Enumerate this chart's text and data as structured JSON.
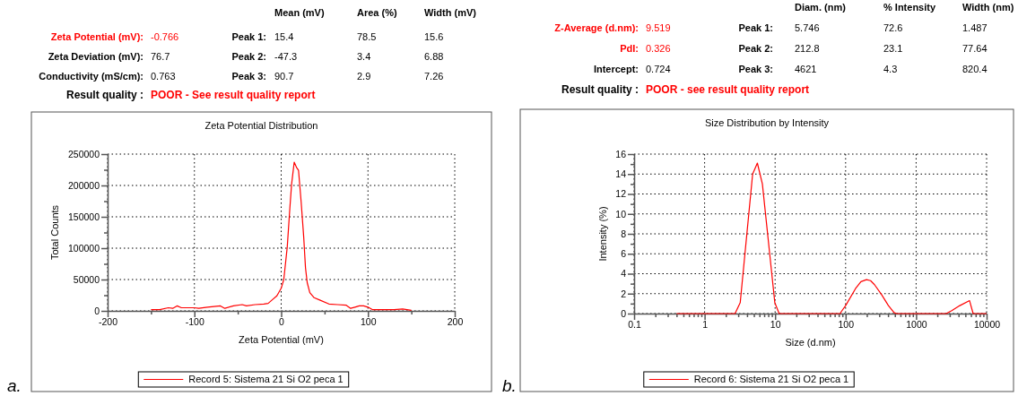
{
  "chart_data": [
    {
      "type": "other",
      "annotations": [
        "Mean (mV)",
        "Area (%)",
        "Width (mV)",
        "Zeta Potential (mV):",
        "-0.766",
        "Peak 1:",
        "15.4",
        "78.5",
        "15.6",
        "Zeta Deviation (mV):",
        "76.7",
        "Peak 2:",
        "-47.3",
        "3.4",
        "6.88",
        "Conductivity (mS/cm):",
        "0.763",
        "Peak 3:",
        "90.7",
        "2.9",
        "7.26",
        "Result quality :",
        "POOR - See result quality report"
      ]
    },
    {
      "type": "line",
      "title": "Zeta Potential Distribution",
      "xlabel": "Zeta Potential (mV)",
      "ylabel": "Total Counts",
      "annotations": [
        "a."
      ],
      "xlim": [
        -200,
        200
      ],
      "xticks": [
        -200,
        {
          "value": -150,
          "label": null
        },
        -100,
        {
          "value": -50,
          "label": null
        },
        0,
        {
          "value": 50,
          "label": null
        },
        100,
        {
          "value": 150,
          "label": null
        },
        200
      ],
      "ylim": [
        0,
        250000
      ],
      "yticks": [
        0,
        {
          "value": 25000,
          "label": null
        },
        50000,
        {
          "value": 75000,
          "label": null
        },
        100000,
        {
          "value": 125000,
          "label": null
        },
        150000,
        {
          "value": 175000,
          "label": null
        },
        200000,
        {
          "value": 225000,
          "label": null
        },
        250000
      ],
      "grid": true,
      "legend": "bottom",
      "series": [
        {
          "name": "Record 5: Sistema 21 Si O2 peca 1",
          "color": "#ff0000",
          "x": [
            -150,
            -140,
            -130,
            -125,
            -120,
            -115,
            -105,
            -100,
            -95,
            -85,
            -70,
            -65,
            -55,
            -45,
            -40,
            -30,
            -20,
            -15,
            -10,
            -5,
            0,
            3,
            7,
            10,
            12,
            15,
            18,
            20,
            23,
            26,
            28,
            30,
            33,
            38,
            45,
            55,
            65,
            75,
            80,
            85,
            90,
            95,
            100,
            105,
            120,
            130,
            140,
            150
          ],
          "values": [
            2000,
            2000,
            5000,
            4000,
            8000,
            5000,
            5000,
            5000,
            4000,
            6000,
            8000,
            4000,
            8000,
            10000,
            8000,
            10000,
            11000,
            12000,
            18000,
            24000,
            36000,
            50000,
            102000,
            164000,
            202000,
            237000,
            228000,
            224000,
            174000,
            117000,
            69000,
            45000,
            29000,
            21000,
            17000,
            11000,
            10000,
            9000,
            4000,
            6000,
            8000,
            8000,
            6000,
            2000,
            2000,
            2000,
            3000,
            1000
          ]
        }
      ]
    },
    {
      "type": "other",
      "annotations": [
        "Diam. (nm)",
        "% Intensity",
        "Width (nm)",
        "Z-Average (d.nm):",
        "9.519",
        "Peak 1:",
        "5.746",
        "72.6",
        "1.487",
        "PdI:",
        "0.326",
        "Peak 2:",
        "212.8",
        "23.1",
        "77.64",
        "Intercept:",
        "0.724",
        "Peak 3:",
        "4621",
        "4.3",
        "820.4",
        "Result quality :",
        "POOR - see result quality report"
      ]
    },
    {
      "type": "line",
      "title": "Size Distribution by Intensity",
      "xlabel": "Size (d.nm)",
      "ylabel": "Intensity (%)",
      "annotations": [
        "b."
      ],
      "log": "x",
      "xlim": [
        0.1,
        10000
      ],
      "xticks": [
        0.1,
        {
          "value": 0.2,
          "label": null
        },
        {
          "value": 0.3,
          "label": null
        },
        {
          "value": 0.4,
          "label": null
        },
        {
          "value": 0.5,
          "label": null
        },
        {
          "value": 0.6,
          "label": null
        },
        {
          "value": 0.7,
          "label": null
        },
        {
          "value": 0.8,
          "label": null
        },
        {
          "value": 0.9,
          "label": null
        },
        1,
        {
          "value": 2,
          "label": null
        },
        {
          "value": 3,
          "label": null
        },
        {
          "value": 4,
          "label": null
        },
        {
          "value": 5,
          "label": null
        },
        {
          "value": 6,
          "label": null
        },
        {
          "value": 7,
          "label": null
        },
        {
          "value": 8,
          "label": null
        },
        {
          "value": 9,
          "label": null
        },
        10,
        {
          "value": 20,
          "label": null
        },
        {
          "value": 30,
          "label": null
        },
        {
          "value": 40,
          "label": null
        },
        {
          "value": 50,
          "label": null
        },
        {
          "value": 60,
          "label": null
        },
        {
          "value": 70,
          "label": null
        },
        {
          "value": 80,
          "label": null
        },
        {
          "value": 90,
          "label": null
        },
        100,
        {
          "value": 200,
          "label": null
        },
        {
          "value": 300,
          "label": null
        },
        {
          "value": 400,
          "label": null
        },
        {
          "value": 500,
          "label": null
        },
        {
          "value": 600,
          "label": null
        },
        {
          "value": 700,
          "label": null
        },
        {
          "value": 800,
          "label": null
        },
        {
          "value": 900,
          "label": null
        },
        1000,
        {
          "value": 2000,
          "label": null
        },
        {
          "value": 3000,
          "label": null
        },
        {
          "value": 4000,
          "label": null
        },
        {
          "value": 5000,
          "label": null
        },
        {
          "value": 6000,
          "label": null
        },
        {
          "value": 7000,
          "label": null
        },
        {
          "value": 8000,
          "label": null
        },
        {
          "value": 9000,
          "label": null
        },
        10000
      ],
      "ylim": [
        0,
        16
      ],
      "yticks": [
        0,
        {
          "value": 1,
          "label": null
        },
        2,
        {
          "value": 3,
          "label": null
        },
        4,
        {
          "value": 5,
          "label": null
        },
        6,
        {
          "value": 7,
          "label": null
        },
        8,
        {
          "value": 9,
          "label": null
        },
        10,
        {
          "value": 11,
          "label": null
        },
        12,
        {
          "value": 13,
          "label": null
        },
        14,
        {
          "value": 15,
          "label": null
        },
        16
      ],
      "grid": true,
      "legend": "bottom",
      "series": [
        {
          "name": "Record 6: Sistema 21 Si O2 peca 1",
          "color": "#ff0000",
          "x": [
            0.4,
            1,
            2.7,
            3.2,
            4.8,
            5.6,
            6.6,
            9.9,
            11.4,
            50,
            84,
            87,
            100,
            138,
            165,
            198,
            226,
            257,
            324,
            405,
            486,
            525,
            1000,
            2670,
            3200,
            4170,
            5730,
            6440,
            10000
          ],
          "values": [
            0,
            0,
            0,
            1.1,
            14.0,
            15.1,
            13.0,
            1.1,
            0,
            0,
            0,
            0.2,
            0.8,
            2.5,
            3.2,
            3.4,
            3.3,
            2.9,
            1.9,
            0.8,
            0.1,
            0,
            0,
            0,
            0.3,
            0.8,
            1.3,
            0,
            0
          ]
        }
      ]
    }
  ]
}
